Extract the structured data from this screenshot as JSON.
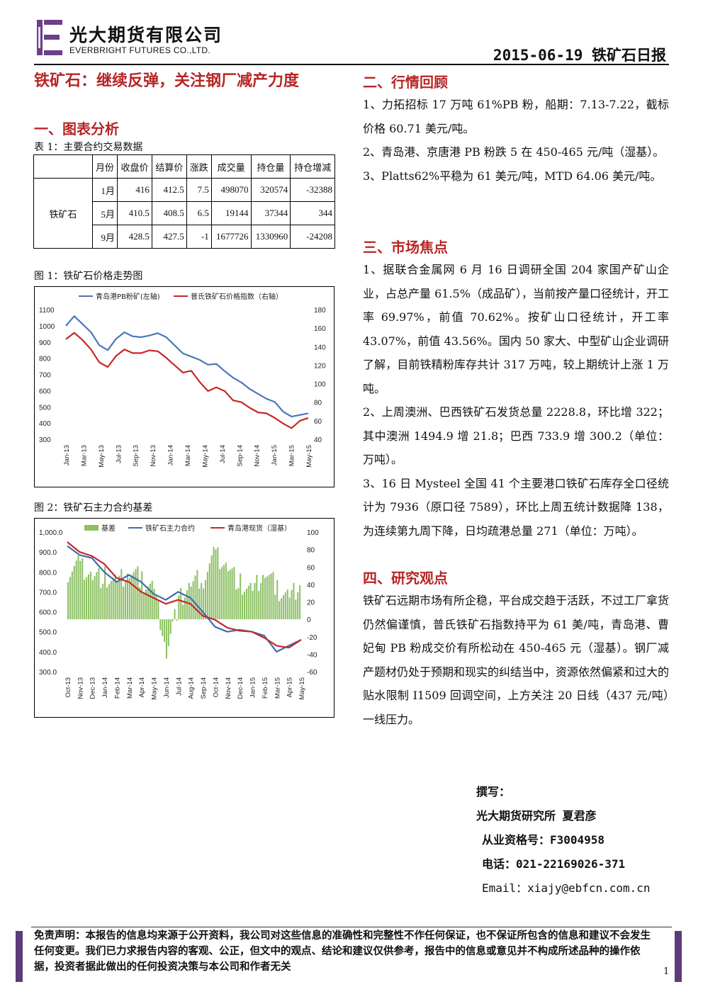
{
  "header": {
    "company_cn": "光大期货有限公司",
    "company_en": "EVERBRIGHT FUTURES CO.,LTD.",
    "report_date_title": "2015-06-19 铁矿石日报"
  },
  "main_title": "铁矿石：继续反弹，关注钢厂减产力度",
  "section1": {
    "heading": "一、图表分析",
    "table_caption": "表 1：主要合约交易数据",
    "table": {
      "columns": [
        "",
        "月份",
        "收盘价",
        "结算价",
        "涨跌",
        "成交量",
        "持仓量",
        "持仓增减"
      ],
      "commodity": "铁矿石",
      "rows": [
        [
          "1月",
          "416",
          "412.5",
          "7.5",
          "498070",
          "320574",
          "-32388"
        ],
        [
          "5月",
          "410.5",
          "408.5",
          "6.5",
          "19144",
          "37344",
          "344"
        ],
        [
          "9月",
          "428.5",
          "427.5",
          "-1",
          "1677726",
          "1330960",
          "-24208"
        ]
      ]
    },
    "fig1_caption": "图 1：铁矿石价格走势图",
    "fig2_caption": "图 2：铁矿石主力合约基差"
  },
  "chart_data": [
    {
      "type": "line",
      "legend": [
        "青岛港PB粉矿(左轴)",
        "普氏铁矿石价格指数（右轴）"
      ],
      "x_ticks": [
        "Jan-13",
        "Mar-13",
        "May-13",
        "Jul-13",
        "Sep-13",
        "Nov-13",
        "Jan-14",
        "Mar-14",
        "May-14",
        "Jul-14",
        "Sep-14",
        "Nov-14",
        "Jan-15",
        "Mar-15",
        "May-15"
      ],
      "y_left": {
        "min": 300,
        "max": 1100,
        "ticks": [
          "1100",
          "1000",
          "900",
          "800",
          "700",
          "600",
          "500",
          "400",
          "300"
        ]
      },
      "y_right": {
        "min": 40,
        "max": 180,
        "ticks": [
          "180",
          "160",
          "140",
          "120",
          "100",
          "80",
          "60",
          "40"
        ]
      },
      "series": [
        {
          "name": "青岛港PB粉矿(左轴)",
          "axis": "left",
          "color": "#4a78b8",
          "x": [
            "Jan-13",
            "Feb-13",
            "Mar-13",
            "Apr-13",
            "May-13",
            "Jun-13",
            "Jul-13",
            "Aug-13",
            "Sep-13",
            "Oct-13",
            "Nov-13",
            "Dec-13",
            "Jan-14",
            "Feb-14",
            "Mar-14",
            "Apr-14",
            "May-14",
            "Jun-14",
            "Jul-14",
            "Aug-14",
            "Sep-14",
            "Oct-14",
            "Nov-14",
            "Dec-14",
            "Jan-15",
            "Feb-15",
            "Mar-15",
            "Apr-15",
            "May-15",
            "Jun-15"
          ],
          "values": [
            1000,
            1060,
            1010,
            960,
            880,
            850,
            920,
            960,
            935,
            930,
            940,
            955,
            930,
            880,
            830,
            810,
            790,
            760,
            765,
            720,
            680,
            650,
            610,
            580,
            550,
            530,
            470,
            440,
            450,
            460
          ]
        },
        {
          "name": "普氏铁矿石价格指数（右轴）",
          "axis": "right",
          "color": "#c62828",
          "x": [
            "Jan-13",
            "Feb-13",
            "Mar-13",
            "Apr-13",
            "May-13",
            "Jun-13",
            "Jul-13",
            "Aug-13",
            "Sep-13",
            "Oct-13",
            "Nov-13",
            "Dec-13",
            "Jan-14",
            "Feb-14",
            "Mar-14",
            "Apr-14",
            "May-14",
            "Jun-14",
            "Jul-14",
            "Aug-14",
            "Sep-14",
            "Oct-14",
            "Nov-14",
            "Dec-14",
            "Jan-15",
            "Feb-15",
            "Mar-15",
            "Apr-15",
            "May-15",
            "Jun-15"
          ],
          "values": [
            148,
            155,
            147,
            137,
            123,
            118,
            130,
            137,
            133,
            133,
            136,
            135,
            128,
            120,
            112,
            114,
            102,
            92,
            96,
            92,
            82,
            80,
            74,
            69,
            68,
            63,
            57,
            52,
            60,
            63
          ]
        }
      ]
    },
    {
      "type": "bar",
      "legend": [
        "基差",
        "铁矿石主力合约",
        "青岛港现货（湿基）"
      ],
      "x_ticks": [
        "Oct-13",
        "Nov-13",
        "Dec-13",
        "Jan-14",
        "Feb-14",
        "Mar-14",
        "Apr-14",
        "May-14",
        "Jun-14",
        "Jul-14",
        "Aug-14",
        "Sep-14",
        "Oct-14",
        "Nov-14",
        "Dec-14",
        "Jan-15",
        "Feb-15",
        "Mar-15",
        "Apr-15",
        "May-15"
      ],
      "y_left": {
        "min": 300,
        "max": 1000,
        "ticks": [
          "1,000.0",
          "900.0",
          "800.0",
          "700.0",
          "600.0",
          "500.0",
          "400.0",
          "300.0"
        ]
      },
      "y_right": {
        "min": -60,
        "max": 100,
        "ticks": [
          "100",
          "80",
          "60",
          "40",
          "20",
          "0",
          "-20",
          "-40",
          "-60"
        ]
      },
      "series": [
        {
          "name": "基差",
          "axis": "right",
          "color": "#8cc063",
          "x": [
            "Oct-13",
            "Nov-13",
            "Dec-13",
            "Jan-14",
            "Feb-14",
            "Mar-14",
            "Apr-14",
            "May-14",
            "Jun-14",
            "Jul-14",
            "Aug-14",
            "Sep-14",
            "Oct-14",
            "Nov-14",
            "Dec-14",
            "Jan-15",
            "Feb-15",
            "Mar-15",
            "Apr-15",
            "May-15"
          ],
          "values": [
            55,
            62,
            50,
            48,
            40,
            55,
            45,
            35,
            -35,
            20,
            40,
            48,
            75,
            60,
            40,
            30,
            55,
            35,
            25,
            45
          ]
        },
        {
          "name": "铁矿石主力合约",
          "axis": "left",
          "color": "#3c6db0",
          "x": [
            "Oct-13",
            "Nov-13",
            "Dec-13",
            "Jan-14",
            "Feb-14",
            "Mar-14",
            "Apr-14",
            "May-14",
            "Jun-14",
            "Jul-14",
            "Aug-14",
            "Sep-14",
            "Oct-14",
            "Nov-14",
            "Dec-14",
            "Jan-15",
            "Feb-15",
            "Mar-15",
            "Apr-15",
            "May-15"
          ],
          "values": [
            930,
            885,
            870,
            800,
            750,
            785,
            750,
            690,
            660,
            700,
            670,
            600,
            525,
            500,
            510,
            500,
            480,
            400,
            430,
            460
          ]
        },
        {
          "name": "青岛港现货（湿基）",
          "axis": "left",
          "color": "#c62828",
          "x": [
            "Oct-13",
            "Nov-13",
            "Dec-13",
            "Jan-14",
            "Feb-14",
            "Mar-14",
            "Apr-14",
            "May-14",
            "Jun-14",
            "Jul-14",
            "Aug-14",
            "Sep-14",
            "Oct-14",
            "Nov-14",
            "Dec-14",
            "Jan-15",
            "Feb-15",
            "Mar-15",
            "Apr-15",
            "May-15"
          ],
          "values": [
            950,
            900,
            880,
            840,
            770,
            750,
            700,
            670,
            640,
            660,
            640,
            580,
            560,
            520,
            505,
            500,
            470,
            430,
            420,
            460
          ]
        }
      ]
    }
  ],
  "section2": {
    "heading": "二、行情回顾",
    "paragraphs": [
      "1、力拓招标 17 万吨 61%PB 粉，船期：7.13-7.22，截标价格 60.71 美元/吨。",
      "2、青岛港、京唐港 PB 粉跌 5 在 450-465 元/吨（湿基）。",
      "3、Platts62%平稳为 61 美元/吨，MTD 64.06 美元/吨。"
    ]
  },
  "section3": {
    "heading": "三、市场焦点",
    "paragraphs": [
      "1、据联合金属网 6 月 16 日调研全国 204 家国产矿山企业，占总产量 61.5%（成品矿），当前按产量口径统计，开工率 69.97%，前值 70.62%。按矿山口径统计，开工率 43.07%，前值 43.56%。国内 50 家大、中型矿山企业调研了解，目前铁精粉库存共计 317 万吨，较上期统计上涨 1 万吨。",
      "2、上周澳洲、巴西铁矿石发货总量 2228.8，环比增 322；其中澳洲 1494.9 增 21.8；巴西 733.9 增 300.2（单位：万吨）。",
      "3、16 日 Mysteel 全国 41 个主要港口铁矿石库存全口径统计为 7936（原口径 7589），环比上周五统计数据降 138，为连续第九周下降，日均疏港总量 271（单位：万吨）。"
    ]
  },
  "section4": {
    "heading": "四、研究观点",
    "paragraphs": [
      "铁矿石远期市场有所企稳，平台成交趋于活跃，不过工厂拿货仍然偏谨慎，普氏铁矿石指数持平为 61 美/吨，青岛港、曹妃甸 PB 粉成交价有所松动在 450-465 元（湿基）。钢厂减产题材仍处于预期和现实的纠结当中，资源依然偏紧和过大的贴水限制 I1509 回调空间，上方关注 20 日线（437 元/吨）一线压力。"
    ]
  },
  "signature": {
    "label": "撰写：",
    "author": "光大期货研究所 夏君彦",
    "license": "从业资格号：F3004958",
    "phone": "电话：021-22169026-371",
    "email": "Email：xiajy@ebfcn.com.cn"
  },
  "disclaimer": "免责声明：本报告的信息均来源于公开资料，我公司对这些信息的准确性和完整性不作任何保证，也不保证所包含的信息和建议不会发生任何变更。我们已力求报告内容的客观、公正，但文中的观点、结论和建议仅供参考，报告中的信息或意见并不构成所述品种的操作依据，投资者据此做出的任何投资决策与本公司和作者无关",
  "page_number": "1"
}
